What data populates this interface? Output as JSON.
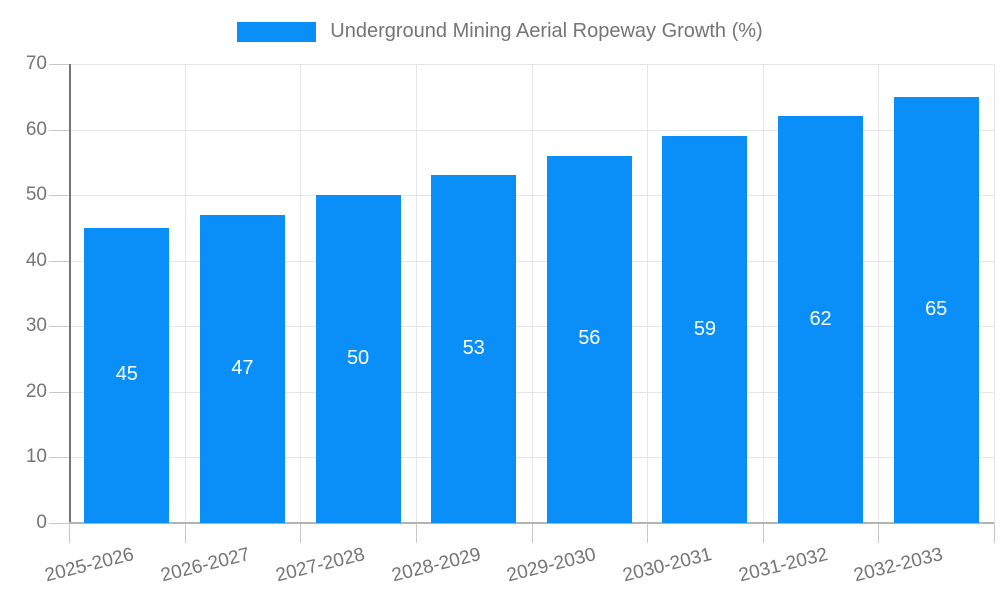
{
  "chart_data": {
    "type": "bar",
    "title": "Underground Mining Aerial Ropeway Growth (%)",
    "categories": [
      "2025-2026",
      "2026-2027",
      "2027-2028",
      "2028-2029",
      "2029-2030",
      "2030-2031",
      "2031-2032",
      "2032-2033"
    ],
    "values": [
      45,
      47,
      50,
      53,
      56,
      59,
      62,
      65
    ],
    "xlabel": "",
    "ylabel": "",
    "ylim": [
      0,
      70
    ],
    "yticks": [
      0,
      10,
      20,
      30,
      40,
      50,
      60,
      70
    ],
    "grid": "both",
    "legend_position": "top-center",
    "x_label_rotation_deg": -14,
    "colors": {
      "bar": "#0a8ff8",
      "bar_value_label": "#ffffff",
      "axis_text": "#757575",
      "legend_text": "#757575",
      "gridline": "#e6e6e6",
      "y_axis_line": "#757575",
      "x_baseline": "#b3b3b3",
      "tick": "#c8c8c8",
      "background": "#ffffff"
    }
  }
}
